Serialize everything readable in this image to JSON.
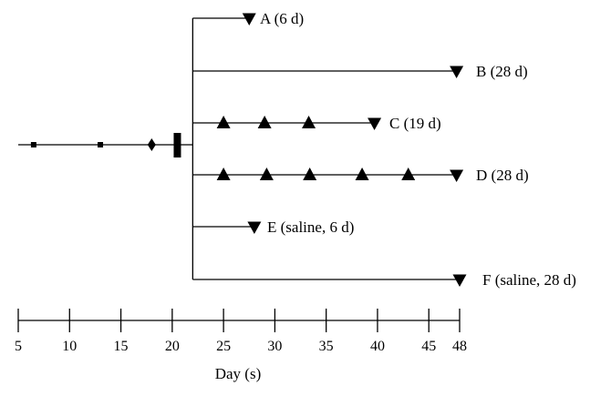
{
  "axis": {
    "title": "Day (s)",
    "min": 5,
    "max": 48,
    "ticks": [
      5,
      10,
      15,
      20,
      25,
      30,
      35,
      40,
      45,
      48
    ]
  },
  "pre_treatment": {
    "square_marks": [
      6.5,
      13
    ],
    "diamond_marks": [
      18
    ],
    "bar_mark": 20.5,
    "start": 5,
    "branch_day": 22
  },
  "groups": [
    {
      "id": "A",
      "label": "A (6 d)",
      "end": 27.5,
      "up_marks": []
    },
    {
      "id": "B",
      "label": "B (28 d)",
      "end": 47.7,
      "up_marks": []
    },
    {
      "id": "C",
      "label": "C (19 d)",
      "end": 39.7,
      "up_marks": [
        25,
        29,
        33.3
      ]
    },
    {
      "id": "D",
      "label": "D (28 d)",
      "end": 47.7,
      "up_marks": [
        25,
        29.2,
        33.4,
        38.5,
        43
      ]
    },
    {
      "id": "E",
      "label": "E (saline, 6 d)",
      "end": 28,
      "up_marks": []
    },
    {
      "id": "F",
      "label": "F (saline, 28 d)",
      "end": 48,
      "up_marks": []
    }
  ]
}
